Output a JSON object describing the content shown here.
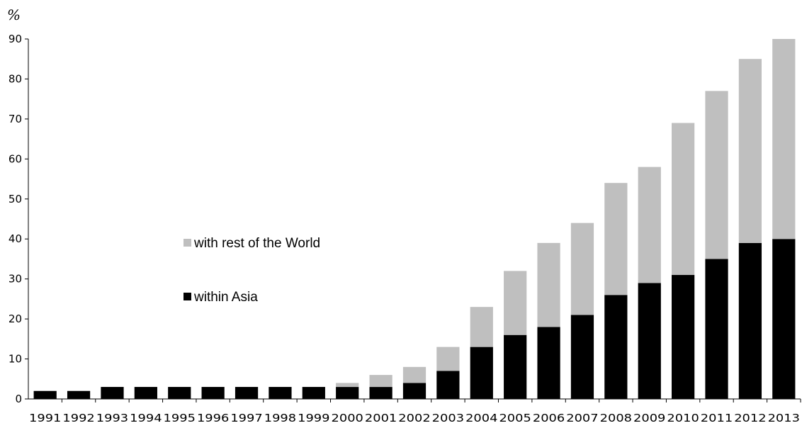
{
  "chart_data": {
    "type": "bar",
    "stacked": true,
    "title": "",
    "xlabel": "",
    "ylabel": "%",
    "ylim": [
      0,
      90
    ],
    "yticks": [
      0,
      10,
      20,
      30,
      40,
      50,
      60,
      70,
      80,
      90
    ],
    "grid": false,
    "legend_position": "center-left",
    "categories": [
      "1991",
      "1992",
      "1993",
      "1994",
      "1995",
      "1996",
      "1997",
      "1998",
      "1999",
      "2000",
      "2001",
      "2002",
      "2003",
      "2004",
      "2005",
      "2006",
      "2007",
      "2008",
      "2009",
      "2010",
      "2011",
      "2012",
      "2013"
    ],
    "series": [
      {
        "name": "within Asia",
        "color": "#000000",
        "values": [
          2,
          2,
          3,
          3,
          3,
          3,
          3,
          3,
          3,
          3,
          3,
          4,
          7,
          13,
          16,
          18,
          21,
          26,
          29,
          31,
          35,
          39,
          40
        ]
      },
      {
        "name": "with rest of the World",
        "color": "#bfbfbf",
        "values": [
          0,
          0,
          0,
          0,
          0,
          0,
          0,
          0,
          0,
          1,
          3,
          4,
          6,
          10,
          16,
          21,
          23,
          28,
          29,
          38,
          42,
          46,
          50
        ]
      }
    ]
  }
}
